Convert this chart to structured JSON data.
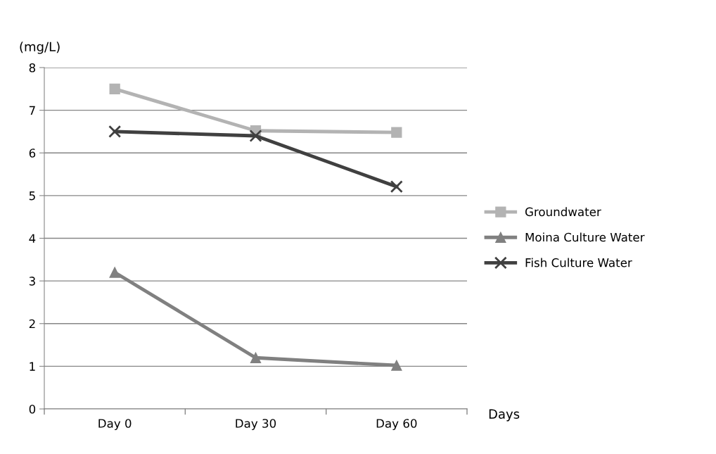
{
  "chart_data": {
    "type": "line",
    "ylabel": "(mg/L)",
    "xlabel": "Days",
    "categories": [
      "Day 0",
      "Day 30",
      "Day 60"
    ],
    "series": [
      {
        "name": "Groundwater",
        "color": "#b3b3b3",
        "marker": "square",
        "values": [
          7.5,
          6.52,
          6.48
        ]
      },
      {
        "name": "Moina Culture Water",
        "color": "#808080",
        "marker": "triangle",
        "values": [
          3.2,
          1.2,
          1.02
        ]
      },
      {
        "name": "Fish Culture Water",
        "color": "#404040",
        "marker": "cross",
        "values": [
          6.5,
          6.4,
          5.21
        ]
      }
    ],
    "ylim": [
      0,
      8
    ],
    "yticks": [
      0,
      1,
      2,
      3,
      4,
      5,
      6,
      7,
      8
    ],
    "grid": "y",
    "legend": "right",
    "line_style": "solid"
  }
}
